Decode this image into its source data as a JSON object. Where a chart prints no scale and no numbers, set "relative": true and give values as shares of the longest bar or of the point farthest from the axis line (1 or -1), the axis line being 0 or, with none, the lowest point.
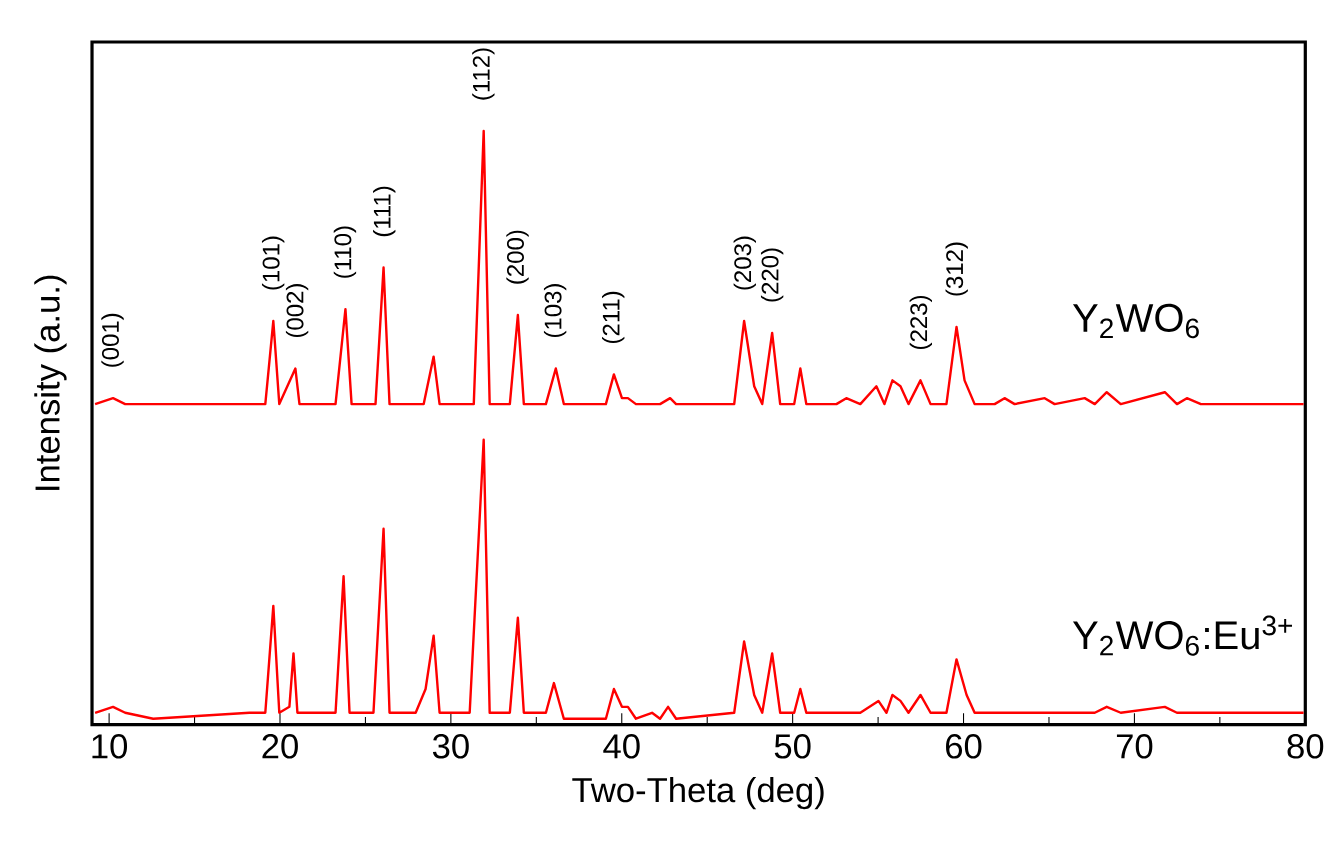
{
  "chart_data": {
    "type": "line",
    "relative": true,
    "xlabel": "Two-Theta (deg)",
    "ylabel": "Intensity (a.u.)",
    "xlim": [
      9,
      80
    ],
    "xticks": [
      10,
      20,
      30,
      40,
      50,
      60,
      70,
      80
    ],
    "grid": false,
    "legend": false,
    "marker": "none",
    "line_style": "solid",
    "series": [
      {
        "name": "Y$_{2}$WO$_{6}$",
        "color": "#ff0000",
        "x": [
          9.18,
          10.23,
          10.94,
          19.14,
          19.61,
          19.96,
          20.9,
          21.14,
          23.25,
          23.83,
          24.19,
          25.59,
          26.06,
          26.41,
          28.41,
          28.99,
          29.34,
          31.34,
          31.92,
          32.27,
          33.45,
          33.92,
          34.27,
          35.56,
          36.14,
          36.61,
          39.07,
          39.54,
          40.01,
          40.36,
          40.83,
          41.77,
          42.24,
          42.83,
          43.18,
          46.58,
          47.16,
          47.75,
          48.22,
          48.8,
          49.27,
          50.09,
          50.45,
          50.8,
          52.56,
          53.14,
          53.96,
          54.9,
          55.37,
          55.84,
          56.31,
          56.78,
          57.48,
          58.07,
          59.0,
          59.59,
          60.06,
          60.65,
          61.82,
          62.4,
          62.99,
          64.75,
          65.33,
          67.09,
          67.68,
          68.38,
          69.2,
          71.78,
          72.49,
          73.07,
          73.89,
          77.41,
          78.82,
          79.9
        ],
        "values": [
          0.54,
          0.55,
          0.54,
          0.54,
          0.68,
          0.54,
          0.6,
          0.54,
          0.54,
          0.7,
          0.54,
          0.54,
          0.77,
          0.54,
          0.54,
          0.62,
          0.54,
          0.54,
          1.0,
          0.54,
          0.54,
          0.69,
          0.54,
          0.54,
          0.6,
          0.54,
          0.54,
          0.59,
          0.55,
          0.55,
          0.54,
          0.54,
          0.54,
          0.55,
          0.54,
          0.54,
          0.68,
          0.57,
          0.54,
          0.66,
          0.54,
          0.54,
          0.6,
          0.54,
          0.54,
          0.55,
          0.54,
          0.57,
          0.54,
          0.58,
          0.57,
          0.54,
          0.58,
          0.54,
          0.54,
          0.67,
          0.58,
          0.54,
          0.54,
          0.55,
          0.54,
          0.55,
          0.54,
          0.55,
          0.54,
          0.56,
          0.54,
          0.56,
          0.54,
          0.55,
          0.54,
          0.54,
          0.54,
          0.54
        ]
      },
      {
        "name": "Y$_{2}$WO$_{6}$:Eu$^{3+}$",
        "color": "#ff0000",
        "x": [
          9.18,
          10.23,
          10.94,
          12.58,
          18.21,
          19.14,
          19.61,
          19.96,
          20.55,
          20.79,
          21.02,
          23.25,
          23.72,
          24.07,
          25.47,
          26.06,
          26.41,
          27.94,
          28.52,
          28.99,
          29.34,
          31.1,
          31.92,
          32.27,
          33.45,
          33.92,
          34.27,
          35.56,
          36.03,
          36.61,
          39.07,
          39.54,
          40.01,
          40.36,
          40.83,
          41.77,
          42.24,
          42.71,
          43.18,
          46.58,
          47.16,
          47.75,
          48.22,
          48.8,
          49.27,
          50.09,
          50.45,
          50.8,
          52.56,
          53.61,
          53.96,
          55.02,
          55.49,
          55.84,
          56.31,
          56.78,
          57.48,
          58.07,
          59.0,
          59.59,
          60.18,
          60.65,
          61.82,
          62.4,
          62.99,
          64.75,
          65.33,
          67.09,
          67.68,
          68.38,
          69.2,
          71.78,
          72.49,
          73.07,
          73.89,
          77.41,
          78.82,
          79.9
        ],
        "values": [
          0.02,
          0.03,
          0.02,
          0.01,
          0.02,
          0.02,
          0.2,
          0.02,
          0.03,
          0.12,
          0.02,
          0.02,
          0.25,
          0.02,
          0.02,
          0.33,
          0.02,
          0.02,
          0.06,
          0.15,
          0.02,
          0.02,
          0.48,
          0.02,
          0.02,
          0.18,
          0.02,
          0.02,
          0.07,
          0.01,
          0.01,
          0.06,
          0.03,
          0.03,
          0.01,
          0.02,
          0.01,
          0.03,
          0.01,
          0.02,
          0.14,
          0.05,
          0.02,
          0.12,
          0.02,
          0.02,
          0.06,
          0.02,
          0.02,
          0.02,
          0.02,
          0.04,
          0.02,
          0.05,
          0.04,
          0.02,
          0.05,
          0.02,
          0.02,
          0.11,
          0.05,
          0.02,
          0.02,
          0.02,
          0.02,
          0.02,
          0.02,
          0.02,
          0.02,
          0.03,
          0.02,
          0.03,
          0.02,
          0.02,
          0.02,
          0.02,
          0.02,
          0.02
        ]
      }
    ],
    "annotations": [
      {
        "text": "(001)",
        "x": 10.2,
        "y": 0.55
      },
      {
        "text": "(101)",
        "x": 19.6,
        "y": 0.68
      },
      {
        "text": "(002)",
        "x": 21.0,
        "y": 0.6
      },
      {
        "text": "(110)",
        "x": 23.8,
        "y": 0.7
      },
      {
        "text": "(111)",
        "x": 26.1,
        "y": 0.77
      },
      {
        "text": "(112)",
        "x": 31.9,
        "y": 1.0
      },
      {
        "text": "(200)",
        "x": 33.9,
        "y": 0.69
      },
      {
        "text": "(103)",
        "x": 36.1,
        "y": 0.6
      },
      {
        "text": "(211)",
        "x": 39.5,
        "y": 0.59
      },
      {
        "text": "(203)",
        "x": 47.2,
        "y": 0.68
      },
      {
        "text": "(220)",
        "x": 48.8,
        "y": 0.66
      },
      {
        "text": "(223)",
        "x": 57.5,
        "y": 0.58
      },
      {
        "text": "(312)",
        "x": 59.6,
        "y": 0.67
      }
    ]
  }
}
